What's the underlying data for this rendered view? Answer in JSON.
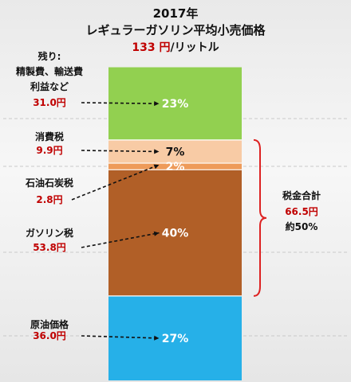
{
  "title_year": "2017年",
  "title_main": "レギュラーガソリン平均小売価格",
  "price_value": "133 円",
  "price_unit": "/リットル",
  "chart_data": {
    "type": "stacked-bar",
    "unit": "円",
    "total": 133,
    "segments": [
      {
        "lines": [
          "原油価格"
        ],
        "value_label": "36.0円",
        "value": 36.0,
        "pct": 27,
        "pct_label": "27%",
        "color": "#26b0e8",
        "pct_color": "#ffffff"
      },
      {
        "lines": [
          "ガソリン税"
        ],
        "value_label": "53.8円",
        "value": 53.8,
        "pct": 40,
        "pct_label": "40%",
        "color": "#b15f27",
        "pct_color": "#ffffff"
      },
      {
        "lines": [
          "石油石炭税"
        ],
        "value_label": "2.8円",
        "value": 2.8,
        "pct": 2,
        "pct_label": "2%",
        "color": "#ee9b5a",
        "pct_color": "#ffffff"
      },
      {
        "lines": [
          "消費税"
        ],
        "value_label": "9.9円",
        "value": 9.9,
        "pct": 7,
        "pct_label": "7%",
        "color": "#f8cba5",
        "pct_color": "#111111"
      },
      {
        "lines": [
          "残り:",
          "精製費、輸送費",
          "利益など"
        ],
        "value_label": "31.0円",
        "value": 31.0,
        "pct": 23,
        "pct_label": "23%",
        "color": "#92d050",
        "pct_color": "#ffffff"
      }
    ],
    "tax_total": {
      "label": "税金合計",
      "value_label": "66.5円",
      "share_label": "約50%"
    }
  }
}
